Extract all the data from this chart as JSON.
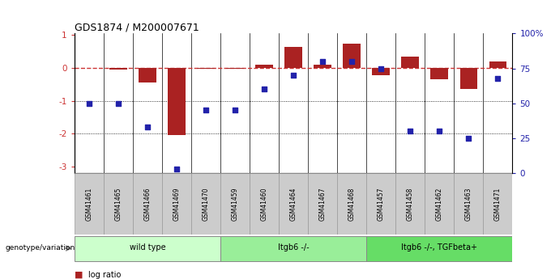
{
  "title": "GDS1874 / M200007671",
  "samples": [
    "GSM41461",
    "GSM41465",
    "GSM41466",
    "GSM41469",
    "GSM41470",
    "GSM41459",
    "GSM41460",
    "GSM41464",
    "GSM41467",
    "GSM41468",
    "GSM41457",
    "GSM41458",
    "GSM41462",
    "GSM41463",
    "GSM41471"
  ],
  "log_ratio": [
    0.0,
    -0.05,
    -0.45,
    -2.05,
    -0.02,
    -0.02,
    0.1,
    0.65,
    0.1,
    0.75,
    -0.22,
    0.35,
    -0.35,
    -0.65,
    0.2
  ],
  "percentile_rank": [
    50,
    50,
    33,
    3,
    45,
    45,
    60,
    70,
    80,
    80,
    75,
    30,
    30,
    25,
    68
  ],
  "groups": [
    {
      "label": "wild type",
      "start": 0,
      "end": 5,
      "color": "#ccffcc"
    },
    {
      "label": "Itgb6 -/-",
      "start": 5,
      "end": 10,
      "color": "#99ee99"
    },
    {
      "label": "Itgb6 -/-, TGFbeta+",
      "start": 10,
      "end": 15,
      "color": "#66dd66"
    }
  ],
  "bar_color": "#aa2222",
  "dot_color": "#2222aa",
  "dashed_line_color": "#cc3333",
  "left_tick_color": "#cc3333",
  "ylim_left": [
    -3.2,
    1.05
  ],
  "ylim_right": [
    0,
    100
  ],
  "yticks_left": [
    -3,
    -2,
    -1,
    0,
    1
  ],
  "ytick_labels_left": [
    "-3",
    "-2",
    "-1",
    "0",
    "1"
  ],
  "yticks_right": [
    0,
    25,
    50,
    75,
    100
  ],
  "ytick_labels_right": [
    "0",
    "25",
    "50",
    "75",
    "100%"
  ],
  "sample_box_color": "#cccccc",
  "sample_box_edge": "#999999"
}
